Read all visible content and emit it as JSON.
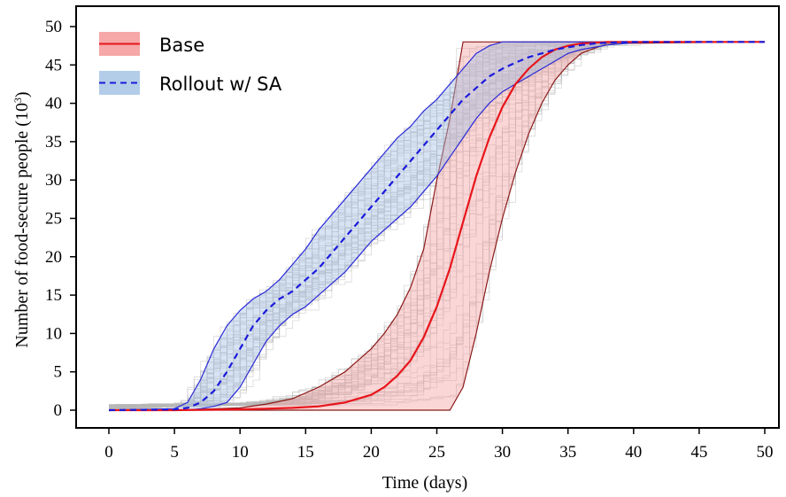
{
  "chart_data": {
    "type": "line",
    "xlabel": "Time (days)",
    "ylabel_main": "Number of food-secure people (10",
    "ylabel_sup": "3",
    "ylabel_close": ")",
    "xlim": [
      0,
      50
    ],
    "ylim": [
      0,
      50
    ],
    "xticks": [
      "0",
      "5",
      "10",
      "15",
      "20",
      "25",
      "30",
      "35",
      "40",
      "45",
      "50"
    ],
    "yticks": [
      "0",
      "5",
      "10",
      "15",
      "20",
      "25",
      "30",
      "35",
      "40",
      "45",
      "50"
    ],
    "legend_position": "top-left",
    "grid": false,
    "series": [
      {
        "name": "Base",
        "style": "solid",
        "color": "#e8151b",
        "band_color": "#f4a4a4",
        "x": [
          0,
          5,
          10,
          12,
          14,
          16,
          18,
          20,
          21,
          22,
          23,
          24,
          25,
          26,
          27,
          28,
          29,
          30,
          31,
          32,
          33,
          34,
          35,
          36,
          38,
          50
        ],
        "y": [
          0,
          0,
          0.1,
          0.2,
          0.3,
          0.5,
          1.0,
          2.0,
          3.0,
          4.5,
          6.5,
          9.5,
          13.5,
          18.5,
          24.5,
          30.5,
          35.5,
          39.5,
          42.5,
          44.5,
          46.0,
          47.0,
          47.5,
          47.8,
          48,
          48
        ],
        "band_upper": [
          0,
          0,
          0.3,
          0.8,
          1.5,
          3,
          5,
          8,
          10,
          12.5,
          16,
          21,
          30,
          38,
          48,
          48,
          48,
          48,
          48,
          48,
          48,
          48,
          48,
          48,
          48,
          48
        ],
        "band_lower": [
          0,
          0,
          0,
          0,
          0,
          0,
          0,
          0,
          0,
          0,
          0,
          0,
          0,
          0,
          3,
          10,
          18,
          25,
          31,
          36,
          40,
          43,
          45,
          46.5,
          47.8,
          48
        ]
      },
      {
        "name": "Rollout w/ SA",
        "style": "dashed",
        "color": "#1a1adb",
        "band_color": "#a9c4e4",
        "x": [
          0,
          5,
          6,
          7,
          8,
          9,
          10,
          11,
          12,
          13,
          14,
          15,
          16,
          17,
          18,
          19,
          20,
          21,
          22,
          23,
          24,
          25,
          26,
          27,
          28,
          29,
          30,
          31,
          32,
          33,
          34,
          35,
          36,
          37,
          38,
          40,
          42,
          50
        ],
        "y": [
          0,
          0.1,
          0.3,
          1.0,
          2.5,
          5,
          8,
          11,
          13,
          14.5,
          15.5,
          17,
          18.5,
          20.5,
          22.5,
          24.5,
          26.5,
          28.5,
          30.5,
          32.5,
          34.5,
          36.5,
          38.5,
          40.5,
          42,
          43.5,
          44.5,
          45.3,
          46,
          46.5,
          47,
          47.3,
          47.6,
          47.8,
          47.9,
          48,
          48,
          48
        ],
        "band_upper": [
          0,
          0.2,
          1.0,
          4,
          8,
          11,
          13,
          14.5,
          15.5,
          17,
          19,
          21,
          23.5,
          25.5,
          27.5,
          29.5,
          31.5,
          33.5,
          35.5,
          37,
          39,
          40.5,
          42.5,
          44.5,
          46.5,
          47.5,
          48,
          48,
          48,
          48,
          48,
          48,
          48,
          48,
          48,
          48,
          48,
          48
        ],
        "band_lower": [
          0,
          0,
          0,
          0.2,
          0.5,
          1.0,
          3,
          6,
          9,
          11,
          12.5,
          13.5,
          15,
          16.5,
          18,
          20,
          22,
          23.5,
          25,
          26.5,
          28.5,
          30.5,
          33,
          35.5,
          38,
          40,
          41.5,
          42.5,
          43.5,
          44.5,
          45.5,
          46.5,
          47,
          47.3,
          47.6,
          47.9,
          48,
          48
        ]
      }
    ]
  }
}
